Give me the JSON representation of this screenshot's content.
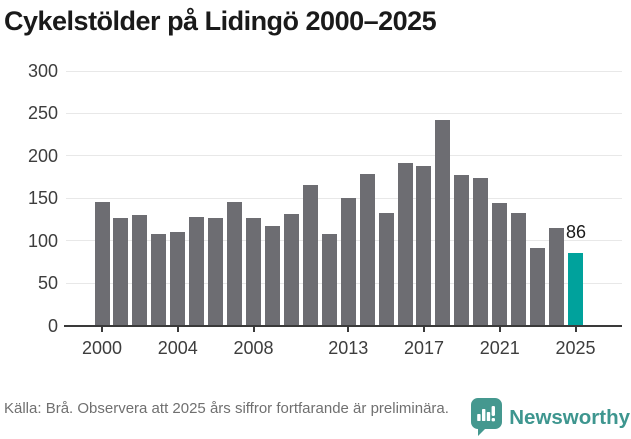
{
  "header": {
    "title": "Cykelstölder på Lidingö 2000–2025"
  },
  "chart_data": {
    "type": "bar",
    "title": "Cykelstölder på Lidingö 2000–2025",
    "categories": [
      2000,
      2001,
      2002,
      2003,
      2004,
      2005,
      2006,
      2007,
      2008,
      2009,
      2010,
      2011,
      2012,
      2013,
      2014,
      2015,
      2016,
      2017,
      2018,
      2019,
      2020,
      2021,
      2022,
      2023,
      2024,
      2025
    ],
    "values": [
      146,
      127,
      130,
      108,
      110,
      128,
      127,
      145,
      127,
      117,
      131,
      166,
      108,
      150,
      179,
      133,
      191,
      188,
      242,
      177,
      174,
      144,
      133,
      91,
      115,
      86
    ],
    "highlight_year": 2025,
    "highlight_value_label": "86",
    "xlabel": "",
    "ylabel": "",
    "ylim": [
      0,
      300
    ],
    "yticks": [
      0,
      50,
      100,
      150,
      200,
      250,
      300
    ],
    "xtick_years": [
      2000,
      2004,
      2008,
      2013,
      2017,
      2021,
      2025
    ],
    "grid": true,
    "legend": false
  },
  "footer": {
    "source_text": "Källa: Brå. Observera att 2025 års siffror fortfarande är preliminära.",
    "brand_name": "Newsworthy"
  },
  "colors": {
    "title": "#1a1a1a",
    "bar": "#6d6d72",
    "highlight": "#00a29c",
    "grid": "#e8e8e8",
    "axis": "#3a3a3a",
    "tick_label": "#3d3d3d",
    "value_label": "#1a1a1a",
    "footer_text": "#707070",
    "brand": "#3e968f"
  }
}
